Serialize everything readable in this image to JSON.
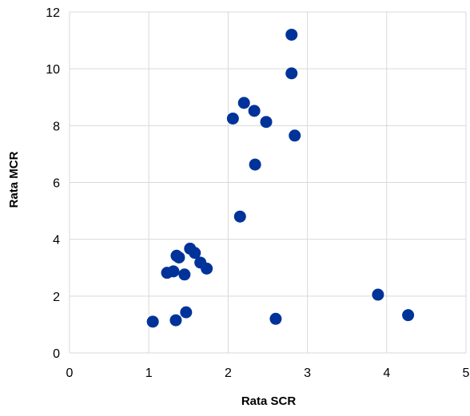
{
  "chart_data": {
    "type": "scatter",
    "title": "",
    "xlabel": "Rata SCR",
    "ylabel": "Rata MCR",
    "xlim": [
      0,
      5
    ],
    "ylim": [
      0,
      12
    ],
    "xticks": [
      0,
      1,
      2,
      3,
      4,
      5
    ],
    "yticks": [
      0,
      2,
      4,
      6,
      8,
      10,
      12
    ],
    "grid": "vertical and horizontal gridlines",
    "legend": "none",
    "marker_color": "#003399",
    "gridline_color": "#d9d9d9",
    "series": [
      {
        "points": [
          {
            "x": 1.05,
            "y": 1.1
          },
          {
            "x": 1.34,
            "y": 1.15
          },
          {
            "x": 1.47,
            "y": 1.43
          },
          {
            "x": 2.6,
            "y": 1.2
          },
          {
            "x": 3.89,
            "y": 2.05
          },
          {
            "x": 4.27,
            "y": 1.33
          },
          {
            "x": 1.23,
            "y": 2.82
          },
          {
            "x": 1.31,
            "y": 2.87
          },
          {
            "x": 1.45,
            "y": 2.76
          },
          {
            "x": 1.35,
            "y": 3.42
          },
          {
            "x": 1.38,
            "y": 3.36
          },
          {
            "x": 1.52,
            "y": 3.67
          },
          {
            "x": 1.58,
            "y": 3.52
          },
          {
            "x": 1.65,
            "y": 3.18
          },
          {
            "x": 1.73,
            "y": 2.97
          },
          {
            "x": 2.15,
            "y": 4.8
          },
          {
            "x": 2.34,
            "y": 6.63
          },
          {
            "x": 2.06,
            "y": 8.25
          },
          {
            "x": 2.2,
            "y": 8.8
          },
          {
            "x": 2.33,
            "y": 8.52
          },
          {
            "x": 2.48,
            "y": 8.13
          },
          {
            "x": 2.84,
            "y": 7.65
          },
          {
            "x": 2.8,
            "y": 9.84
          },
          {
            "x": 2.8,
            "y": 11.2
          }
        ]
      }
    ]
  }
}
